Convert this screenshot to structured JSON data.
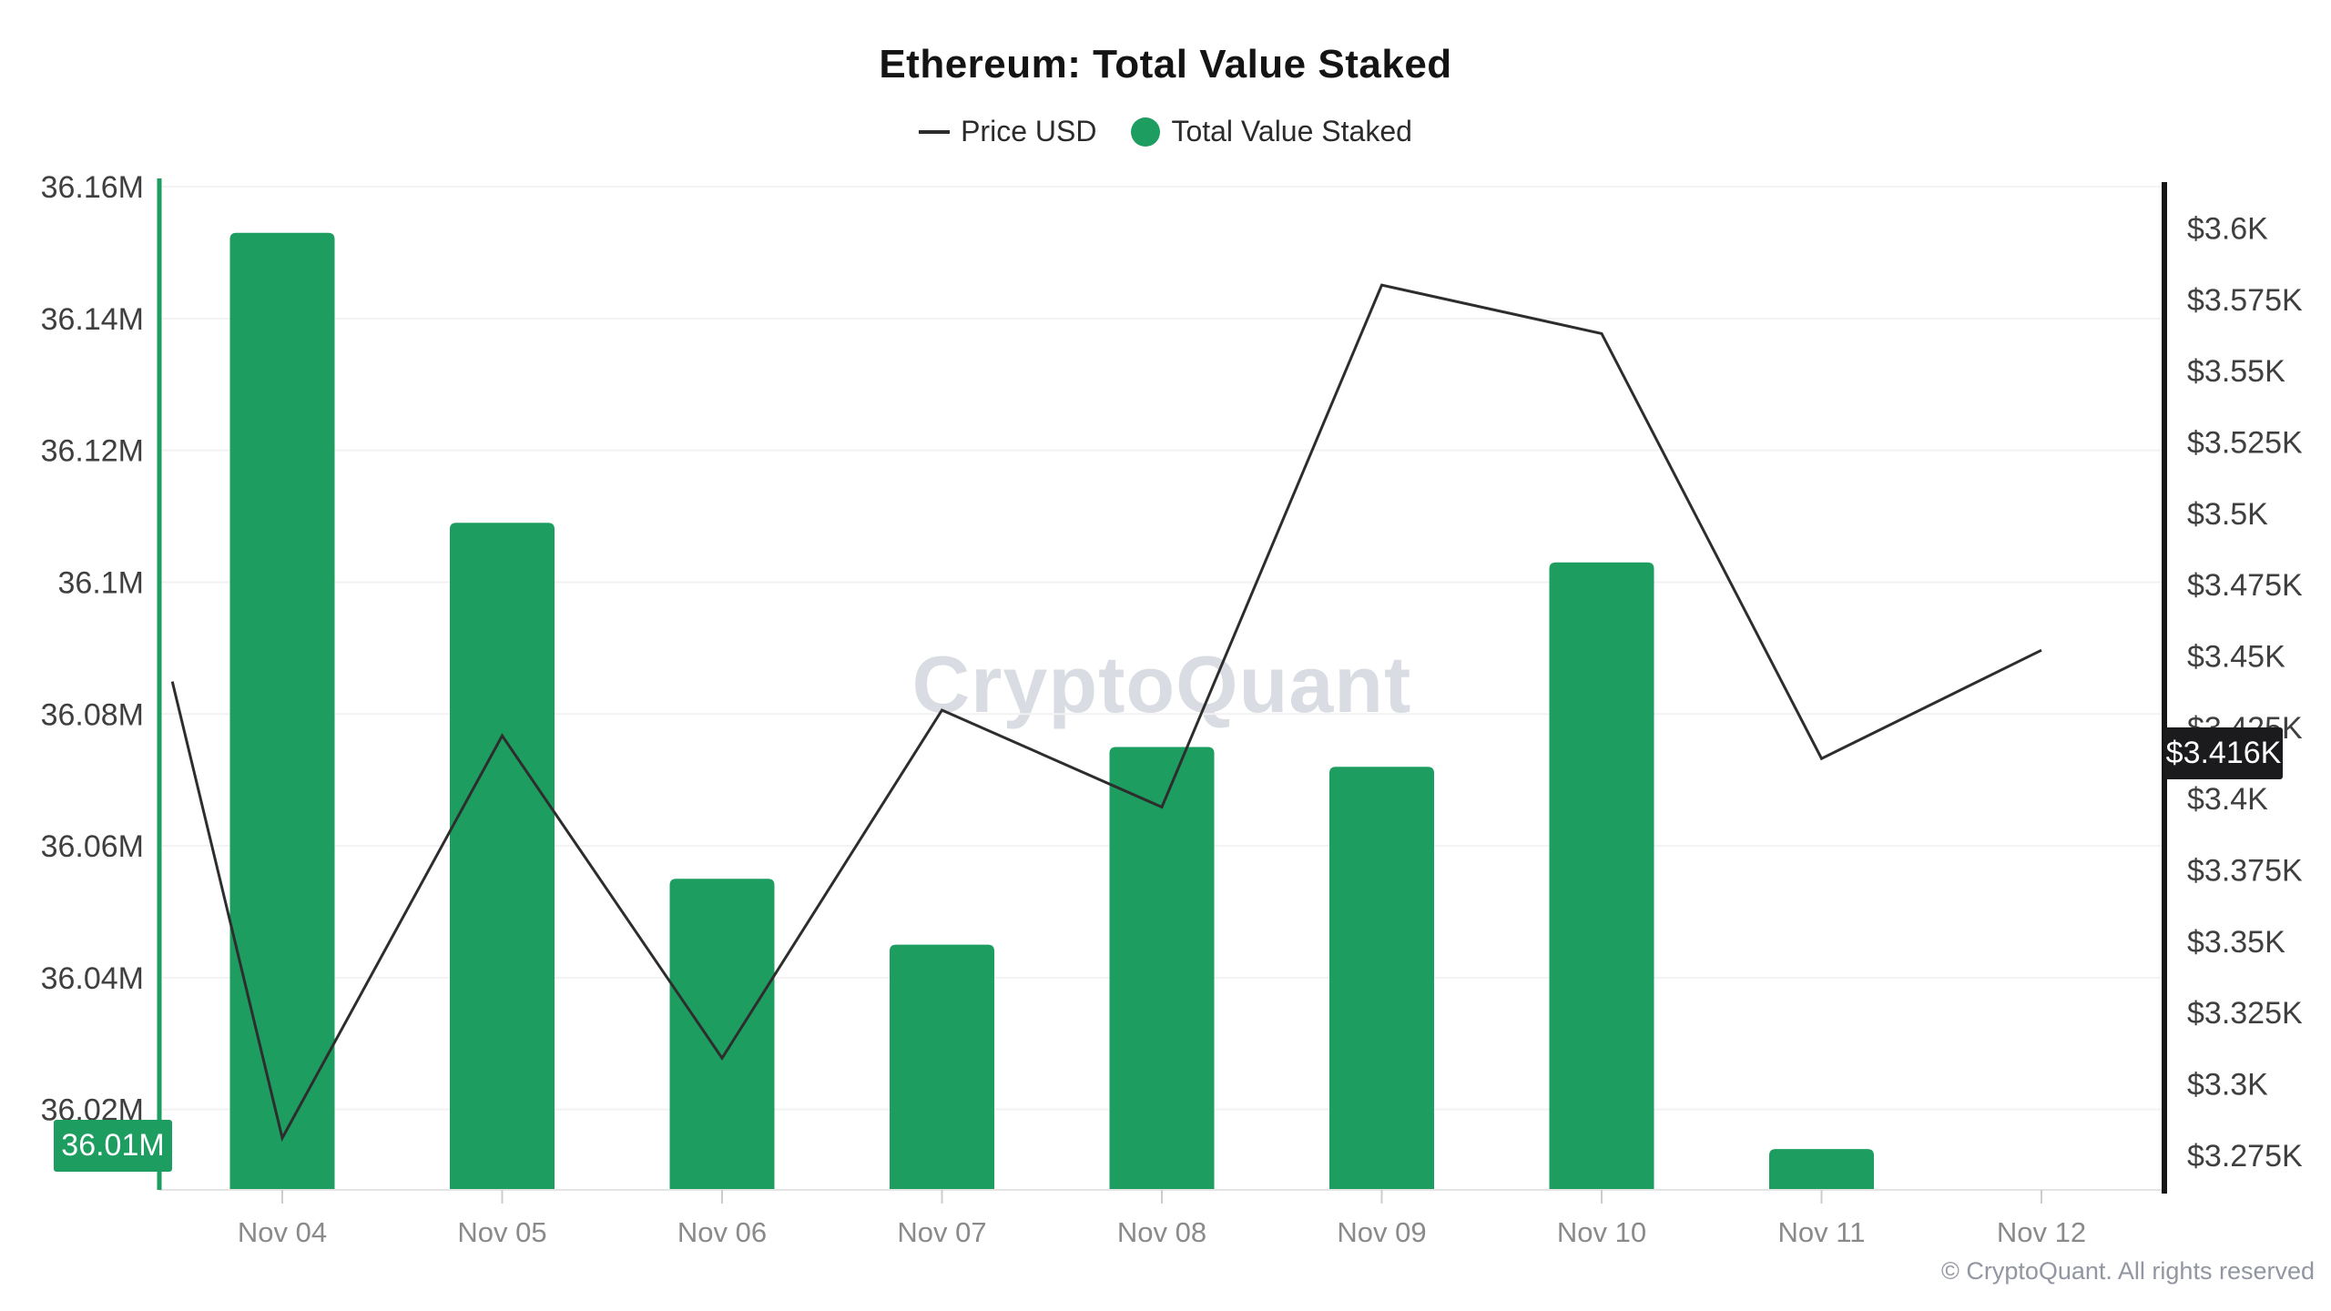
{
  "header": {
    "title": "Ethereum: Total Value Staked"
  },
  "legend": {
    "items": [
      {
        "label": "Price USD",
        "swatch": "line",
        "color": "#2d2d2d"
      },
      {
        "label": "Total Value Staked",
        "swatch": "dot",
        "color": "#1e9d60"
      }
    ]
  },
  "watermark": {
    "text": "CryptoQuant"
  },
  "footer": {
    "copyright": "© CryptoQuant. All rights reserved"
  },
  "badges": {
    "staked": {
      "label": "36.01M"
    },
    "price": {
      "label": "$3.416K"
    }
  },
  "colors": {
    "bar": "#1e9d60",
    "line": "#2d2d2d",
    "grid": "#f2f2f2",
    "x_axis_line": "#e4e4e4",
    "x_tick": "#cccccc",
    "left_axis_line": "#1e9d60",
    "right_axis_line": "#161616",
    "y_tick_text": "#3f3f3f",
    "x_tick_text": "#8a8a8a"
  },
  "chart_data": {
    "type": "combo-bar-line",
    "title": "Ethereum: Total Value Staked",
    "legend_position": "top",
    "grid": true,
    "categories": [
      "Nov 04",
      "Nov 05",
      "Nov 06",
      "Nov 07",
      "Nov 08",
      "Nov 09",
      "Nov 10",
      "Nov 11",
      "Nov 12"
    ],
    "series": [
      {
        "name": "Total Value Staked",
        "type": "bar",
        "axis": "left",
        "unit": "M",
        "color": "#1e9d60",
        "values": [
          36.153,
          36.109,
          36.055,
          36.045,
          36.075,
          36.072,
          36.103,
          36.014,
          null
        ]
      },
      {
        "name": "Price USD",
        "type": "line",
        "axis": "right",
        "unit": "K USD",
        "color": "#2d2d2d",
        "points": [
          {
            "x": -0.5,
            "y": 3.441
          },
          {
            "x": 0,
            "y": 3.281
          },
          {
            "x": 1,
            "y": 3.422
          },
          {
            "x": 2,
            "y": 3.309
          },
          {
            "x": 3,
            "y": 3.431
          },
          {
            "x": 4,
            "y": 3.397
          },
          {
            "x": 5,
            "y": 3.58
          },
          {
            "x": 6,
            "y": 3.563
          },
          {
            "x": 7,
            "y": 3.414
          },
          {
            "x": 8,
            "y": 3.452
          }
        ]
      }
    ],
    "left_axis": {
      "title": "Total Value Staked",
      "range": [
        36.0078,
        36.1607
      ],
      "badge": {
        "label": "36.01M",
        "value": 36.0145
      },
      "ticks": [
        {
          "v": 36.16,
          "label": "36.16M"
        },
        {
          "v": 36.14,
          "label": "36.14M"
        },
        {
          "v": 36.12,
          "label": "36.12M"
        },
        {
          "v": 36.1,
          "label": "36.1M"
        },
        {
          "v": 36.08,
          "label": "36.08M"
        },
        {
          "v": 36.06,
          "label": "36.06M"
        },
        {
          "v": 36.04,
          "label": "36.04M"
        },
        {
          "v": 36.02,
          "label": "36.02M"
        }
      ]
    },
    "right_axis": {
      "title": "Price USD",
      "range": [
        3.2628,
        3.6161
      ],
      "badge": {
        "label": "$3.416K",
        "value": 3.416
      },
      "ticks": [
        {
          "v": 3.6,
          "label": "$3.6K"
        },
        {
          "v": 3.575,
          "label": "$3.575K"
        },
        {
          "v": 3.55,
          "label": "$3.55K"
        },
        {
          "v": 3.525,
          "label": "$3.525K"
        },
        {
          "v": 3.5,
          "label": "$3.5K"
        },
        {
          "v": 3.475,
          "label": "$3.475K"
        },
        {
          "v": 3.45,
          "label": "$3.45K"
        },
        {
          "v": 3.425,
          "label": "$3.425K"
        },
        {
          "v": 3.4,
          "label": "$3.4K"
        },
        {
          "v": 3.375,
          "label": "$3.375K"
        },
        {
          "v": 3.35,
          "label": "$3.35K"
        },
        {
          "v": 3.325,
          "label": "$3.325K"
        },
        {
          "v": 3.3,
          "label": "$3.3K"
        },
        {
          "v": 3.275,
          "label": "$3.275K"
        }
      ]
    }
  }
}
